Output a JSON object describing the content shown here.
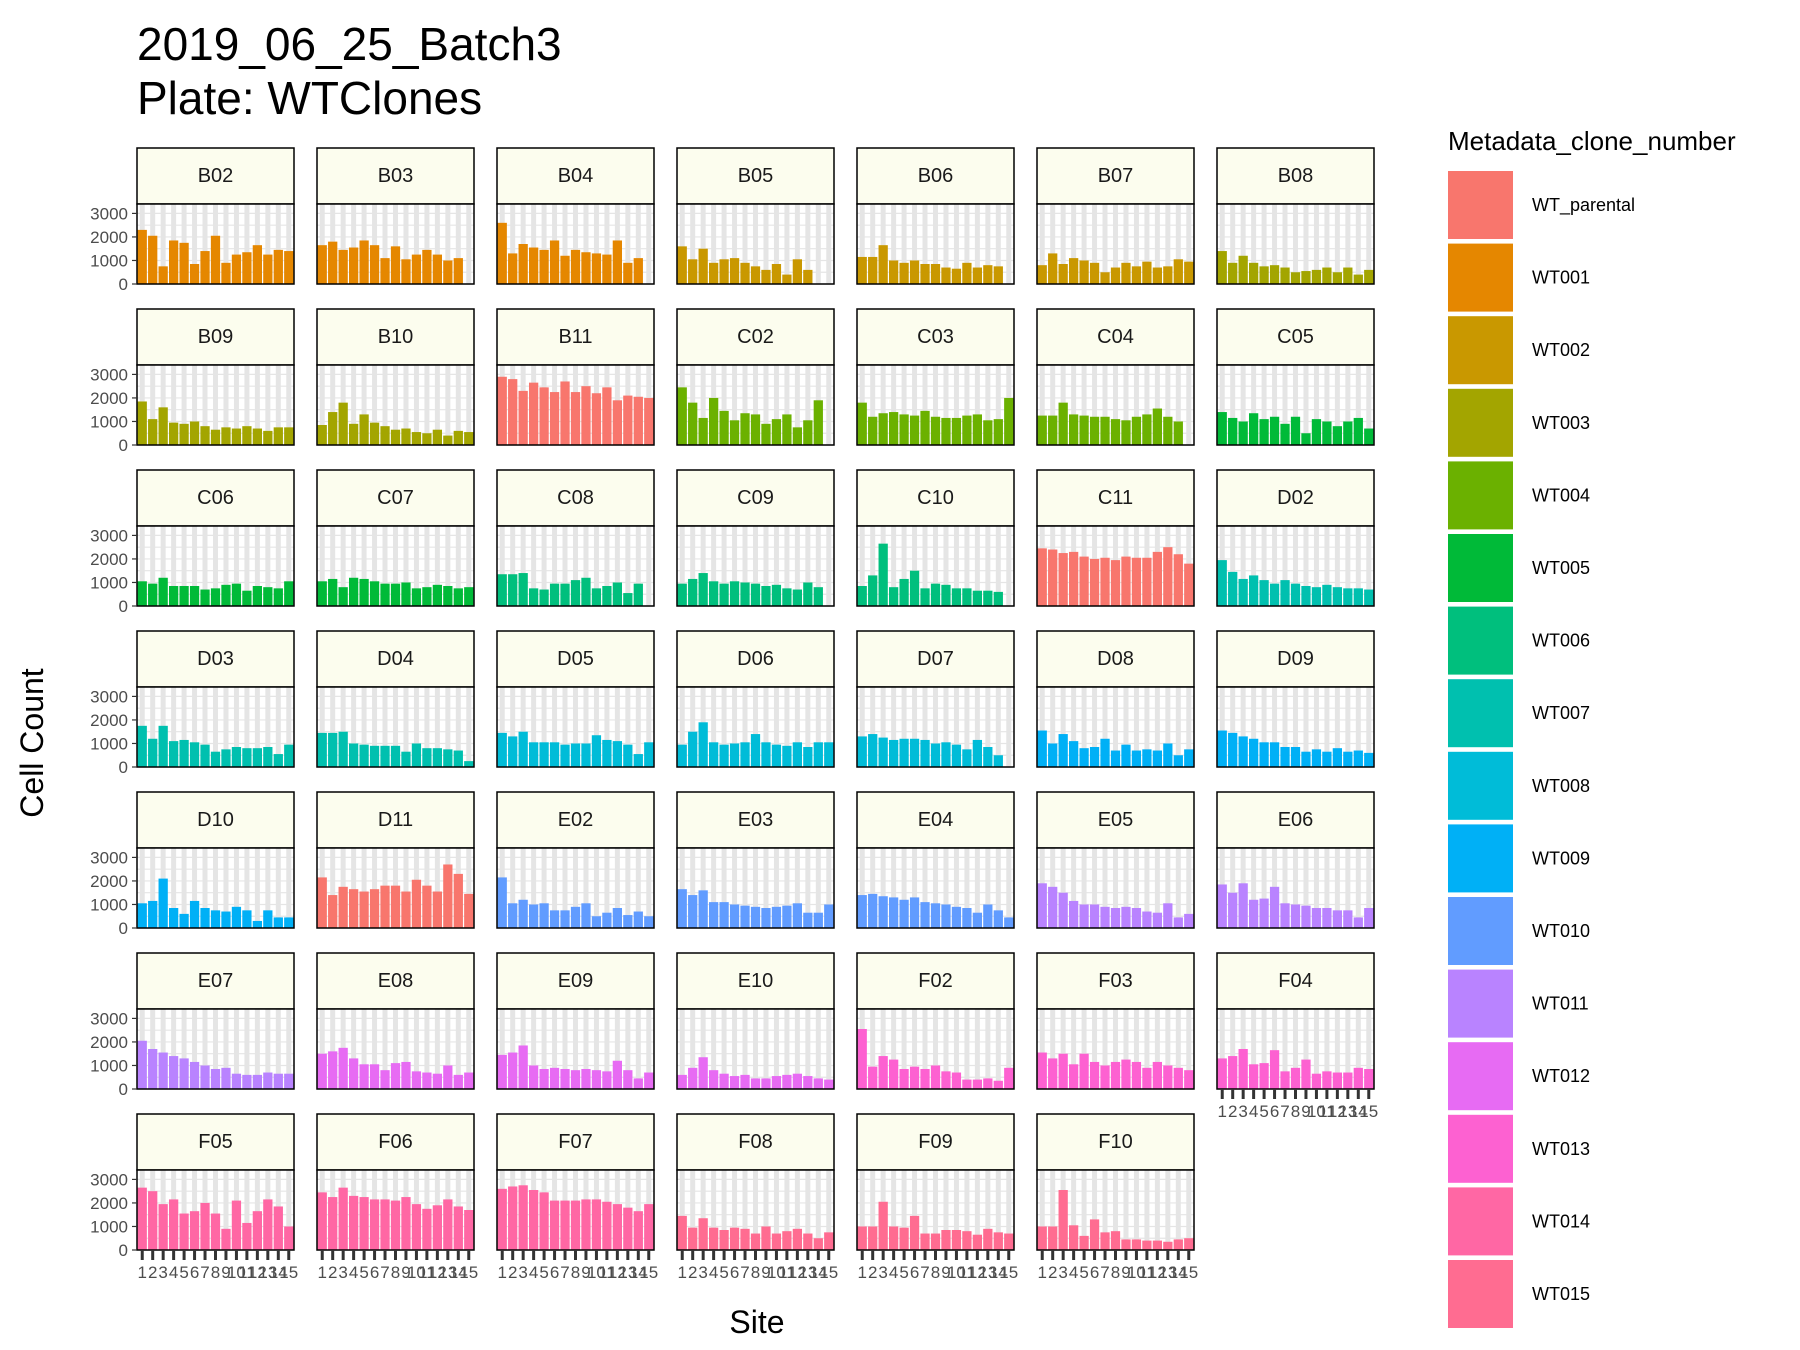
{
  "chart_data": {
    "type": "bar",
    "title": "2019_06_25_Batch3",
    "subtitle": "Plate: WTClones",
    "xlabel": "Site",
    "ylabel": "Cell Count",
    "ylim": [
      0,
      3400
    ],
    "y_ticks": [
      0,
      1000,
      2000,
      3000
    ],
    "sites": [
      "1",
      "2",
      "3",
      "4",
      "5",
      "6",
      "7",
      "8",
      "9",
      "10",
      "11",
      "12",
      "13",
      "14",
      "15"
    ],
    "grid": true,
    "legend": {
      "title": "Metadata_clone_number",
      "position": "right",
      "items": [
        {
          "name": "WT_parental",
          "color": "#F8766D"
        },
        {
          "name": "WT001",
          "color": "#E58700"
        },
        {
          "name": "WT002",
          "color": "#C99800"
        },
        {
          "name": "WT003",
          "color": "#A3A500"
        },
        {
          "name": "WT004",
          "color": "#6BB100"
        },
        {
          "name": "WT005",
          "color": "#00BA38"
        },
        {
          "name": "WT006",
          "color": "#00BF7D"
        },
        {
          "name": "WT007",
          "color": "#00C0AF"
        },
        {
          "name": "WT008",
          "color": "#00BCD8"
        },
        {
          "name": "WT009",
          "color": "#00B0F6"
        },
        {
          "name": "WT010",
          "color": "#619CFF"
        },
        {
          "name": "WT011",
          "color": "#B983FF"
        },
        {
          "name": "WT012",
          "color": "#E76BF3"
        },
        {
          "name": "WT013",
          "color": "#FD61D1"
        },
        {
          "name": "WT014",
          "color": "#FF67A4"
        },
        {
          "name": "WT015",
          "color": "#FF6C91"
        }
      ]
    },
    "panels": [
      {
        "well": "B02",
        "clone": "WT001",
        "values": [
          2300,
          2050,
          750,
          1850,
          1750,
          850,
          1400,
          2050,
          900,
          1250,
          1350,
          1650,
          1250,
          1450,
          1400
        ]
      },
      {
        "well": "B03",
        "clone": "WT001",
        "values": [
          1650,
          1800,
          1450,
          1550,
          1850,
          1650,
          1100,
          1600,
          1050,
          1250,
          1450,
          1250,
          1000,
          1100,
          0
        ]
      },
      {
        "well": "B04",
        "clone": "WT001",
        "values": [
          2600,
          1300,
          1700,
          1550,
          1450,
          1850,
          1200,
          1450,
          1350,
          1300,
          1250,
          1850,
          900,
          1100,
          0
        ]
      },
      {
        "well": "B05",
        "clone": "WT002",
        "values": [
          1600,
          1050,
          1500,
          900,
          1050,
          1100,
          900,
          750,
          600,
          850,
          400,
          1050,
          600,
          0,
          0
        ]
      },
      {
        "well": "B06",
        "clone": "WT002",
        "values": [
          1150,
          1150,
          1650,
          1000,
          900,
          1000,
          850,
          850,
          700,
          650,
          900,
          700,
          800,
          750,
          0
        ]
      },
      {
        "well": "B07",
        "clone": "WT002",
        "values": [
          800,
          1300,
          850,
          1100,
          1000,
          900,
          500,
          700,
          900,
          750,
          950,
          700,
          750,
          1050,
          950
        ]
      },
      {
        "well": "B08",
        "clone": "WT003",
        "values": [
          1400,
          900,
          1200,
          900,
          750,
          800,
          700,
          500,
          550,
          600,
          700,
          500,
          700,
          400,
          600
        ]
      },
      {
        "well": "B09",
        "clone": "WT003",
        "values": [
          1850,
          1100,
          1600,
          950,
          900,
          1000,
          800,
          650,
          750,
          700,
          800,
          700,
          600,
          750,
          750
        ]
      },
      {
        "well": "B10",
        "clone": "WT003",
        "values": [
          850,
          1400,
          1800,
          900,
          1300,
          950,
          800,
          650,
          700,
          550,
          500,
          650,
          400,
          600,
          550
        ]
      },
      {
        "well": "B11",
        "clone": "WT_parental",
        "values": [
          2900,
          2800,
          2300,
          2650,
          2450,
          2250,
          2700,
          2250,
          2500,
          2200,
          2450,
          1900,
          2100,
          2050,
          2000
        ]
      },
      {
        "well": "C02",
        "clone": "WT004",
        "values": [
          2450,
          1800,
          1150,
          2000,
          1450,
          1050,
          1350,
          1300,
          900,
          1100,
          1300,
          750,
          1050,
          1900,
          0
        ]
      },
      {
        "well": "C03",
        "clone": "WT004",
        "values": [
          1800,
          1200,
          1350,
          1400,
          1300,
          1250,
          1450,
          1200,
          1150,
          1150,
          1250,
          1300,
          1050,
          1100,
          2000
        ]
      },
      {
        "well": "C04",
        "clone": "WT004",
        "values": [
          1250,
          1250,
          1800,
          1300,
          1250,
          1200,
          1200,
          1100,
          1050,
          1200,
          1300,
          1550,
          1200,
          1000,
          0
        ]
      },
      {
        "well": "C05",
        "clone": "WT005",
        "values": [
          1400,
          1150,
          1000,
          1350,
          1100,
          1200,
          900,
          1200,
          500,
          1100,
          1000,
          800,
          1000,
          1150,
          700
        ]
      },
      {
        "well": "C06",
        "clone": "WT005",
        "values": [
          1050,
          950,
          1200,
          850,
          850,
          850,
          700,
          750,
          900,
          950,
          650,
          850,
          800,
          750,
          1050
        ]
      },
      {
        "well": "C07",
        "clone": "WT005",
        "values": [
          1050,
          1150,
          800,
          1200,
          1150,
          1050,
          950,
          950,
          1000,
          750,
          800,
          900,
          850,
          750,
          800
        ]
      },
      {
        "well": "C08",
        "clone": "WT006",
        "values": [
          1350,
          1350,
          1400,
          750,
          700,
          950,
          950,
          1100,
          1200,
          750,
          850,
          1000,
          550,
          950,
          0
        ]
      },
      {
        "well": "C09",
        "clone": "WT006",
        "values": [
          950,
          1150,
          1400,
          1050,
          950,
          1050,
          1000,
          950,
          850,
          900,
          750,
          700,
          1000,
          800,
          0
        ]
      },
      {
        "well": "C10",
        "clone": "WT006",
        "values": [
          850,
          1300,
          2650,
          800,
          1150,
          1500,
          750,
          950,
          900,
          750,
          750,
          650,
          650,
          600,
          0
        ]
      },
      {
        "well": "C11",
        "clone": "WT_parental",
        "values": [
          2450,
          2400,
          2250,
          2300,
          2100,
          2000,
          2050,
          1950,
          2100,
          2050,
          2050,
          2300,
          2500,
          2200,
          1800
        ]
      },
      {
        "well": "D02",
        "clone": "WT007",
        "values": [
          1950,
          1450,
          1150,
          1300,
          1100,
          950,
          1100,
          950,
          850,
          800,
          900,
          800,
          750,
          750,
          700
        ]
      },
      {
        "well": "D03",
        "clone": "WT007",
        "values": [
          1750,
          1200,
          1750,
          1100,
          1150,
          1050,
          950,
          650,
          750,
          850,
          800,
          800,
          850,
          550,
          950
        ]
      },
      {
        "well": "D04",
        "clone": "WT007",
        "values": [
          1450,
          1450,
          1500,
          1000,
          950,
          900,
          900,
          900,
          650,
          1000,
          800,
          800,
          750,
          700,
          250
        ]
      },
      {
        "well": "D05",
        "clone": "WT008",
        "values": [
          1450,
          1300,
          1500,
          1050,
          1050,
          1050,
          950,
          1000,
          1000,
          1350,
          1150,
          1100,
          950,
          550,
          1050
        ]
      },
      {
        "well": "D06",
        "clone": "WT008",
        "values": [
          950,
          1500,
          1900,
          1050,
          950,
          1000,
          1050,
          1400,
          1050,
          950,
          900,
          1050,
          850,
          1050,
          1050
        ]
      },
      {
        "well": "D07",
        "clone": "WT008",
        "values": [
          1300,
          1400,
          1250,
          1150,
          1200,
          1200,
          1150,
          1000,
          1050,
          950,
          750,
          1150,
          850,
          500,
          0
        ]
      },
      {
        "well": "D08",
        "clone": "WT009",
        "values": [
          1550,
          1000,
          1400,
          1100,
          800,
          850,
          1200,
          700,
          950,
          700,
          750,
          700,
          1000,
          500,
          750
        ]
      },
      {
        "well": "D09",
        "clone": "WT009",
        "values": [
          1550,
          1450,
          1300,
          1200,
          1050,
          1050,
          850,
          850,
          650,
          750,
          650,
          800,
          650,
          700,
          600
        ]
      },
      {
        "well": "D10",
        "clone": "WT009",
        "values": [
          1050,
          1150,
          2100,
          850,
          600,
          1150,
          850,
          750,
          700,
          900,
          750,
          300,
          750,
          450,
          450
        ]
      },
      {
        "well": "D11",
        "clone": "WT_parental",
        "values": [
          2150,
          1400,
          1750,
          1650,
          1550,
          1650,
          1800,
          1800,
          1550,
          2050,
          1800,
          1550,
          2700,
          2300,
          1450
        ]
      },
      {
        "well": "E02",
        "clone": "WT010",
        "values": [
          2150,
          1050,
          1200,
          1000,
          1050,
          750,
          750,
          900,
          1050,
          500,
          650,
          850,
          550,
          700,
          500
        ]
      },
      {
        "well": "E03",
        "clone": "WT010",
        "values": [
          1650,
          1400,
          1600,
          1100,
          1100,
          1000,
          950,
          900,
          850,
          900,
          950,
          1050,
          650,
          650,
          1000
        ]
      },
      {
        "well": "E04",
        "clone": "WT010",
        "values": [
          1400,
          1450,
          1350,
          1300,
          1200,
          1300,
          1100,
          1050,
          1000,
          900,
          850,
          650,
          1000,
          750,
          450
        ]
      },
      {
        "well": "E05",
        "clone": "WT011",
        "values": [
          1900,
          1750,
          1500,
          1150,
          1000,
          1000,
          900,
          850,
          900,
          850,
          700,
          650,
          1050,
          450,
          600
        ]
      },
      {
        "well": "E06",
        "clone": "WT011",
        "values": [
          1850,
          1500,
          1900,
          1200,
          1250,
          1750,
          1050,
          1000,
          950,
          850,
          850,
          750,
          750,
          450,
          850
        ]
      },
      {
        "well": "E07",
        "clone": "WT011",
        "values": [
          2050,
          1700,
          1550,
          1400,
          1300,
          1150,
          1000,
          850,
          900,
          650,
          600,
          600,
          700,
          650,
          650
        ]
      },
      {
        "well": "E08",
        "clone": "WT012",
        "values": [
          1500,
          1600,
          1750,
          1300,
          1050,
          1050,
          800,
          1100,
          1150,
          750,
          700,
          650,
          1000,
          600,
          700
        ]
      },
      {
        "well": "E09",
        "clone": "WT012",
        "values": [
          1450,
          1550,
          1850,
          1000,
          850,
          900,
          850,
          800,
          850,
          800,
          750,
          1200,
          800,
          450,
          700
        ]
      },
      {
        "well": "E10",
        "clone": "WT012",
        "values": [
          600,
          900,
          1350,
          800,
          650,
          550,
          600,
          450,
          450,
          550,
          600,
          650,
          550,
          450,
          400
        ]
      },
      {
        "well": "F02",
        "clone": "WT013",
        "values": [
          2550,
          950,
          1400,
          1250,
          850,
          950,
          850,
          1000,
          750,
          700,
          400,
          400,
          450,
          350,
          900
        ]
      },
      {
        "well": "F03",
        "clone": "WT013",
        "values": [
          1550,
          1300,
          1500,
          1050,
          1500,
          1150,
          1000,
          1150,
          1250,
          1150,
          900,
          1150,
          1000,
          900,
          800
        ]
      },
      {
        "well": "F04",
        "clone": "WT013",
        "values": [
          1300,
          1400,
          1700,
          1050,
          1100,
          1650,
          750,
          900,
          1250,
          650,
          750,
          700,
          700,
          900,
          850
        ]
      },
      {
        "well": "F05",
        "clone": "WT014",
        "values": [
          2650,
          2500,
          1950,
          2150,
          1550,
          1650,
          2000,
          1550,
          900,
          2100,
          1150,
          1650,
          2150,
          1850,
          1000
        ]
      },
      {
        "well": "F06",
        "clone": "WT014",
        "values": [
          2450,
          2250,
          2650,
          2300,
          2250,
          2150,
          2150,
          2100,
          2250,
          1950,
          1750,
          1900,
          2150,
          1850,
          1700
        ]
      },
      {
        "well": "F07",
        "clone": "WT014",
        "values": [
          2600,
          2700,
          2750,
          2550,
          2450,
          2100,
          2100,
          2100,
          2150,
          2150,
          2050,
          1950,
          1800,
          1650,
          1950
        ]
      },
      {
        "well": "F08",
        "clone": "WT015",
        "values": [
          1450,
          950,
          1350,
          950,
          850,
          950,
          900,
          700,
          1000,
          700,
          800,
          900,
          700,
          500,
          750
        ]
      },
      {
        "well": "F09",
        "clone": "WT015",
        "values": [
          1000,
          1000,
          2050,
          1000,
          950,
          1450,
          700,
          700,
          850,
          850,
          800,
          650,
          900,
          750,
          700
        ]
      },
      {
        "well": "F10",
        "clone": "WT015",
        "values": [
          1000,
          1000,
          2550,
          1050,
          600,
          1300,
          750,
          800,
          450,
          450,
          400,
          400,
          350,
          450,
          500
        ]
      }
    ]
  }
}
